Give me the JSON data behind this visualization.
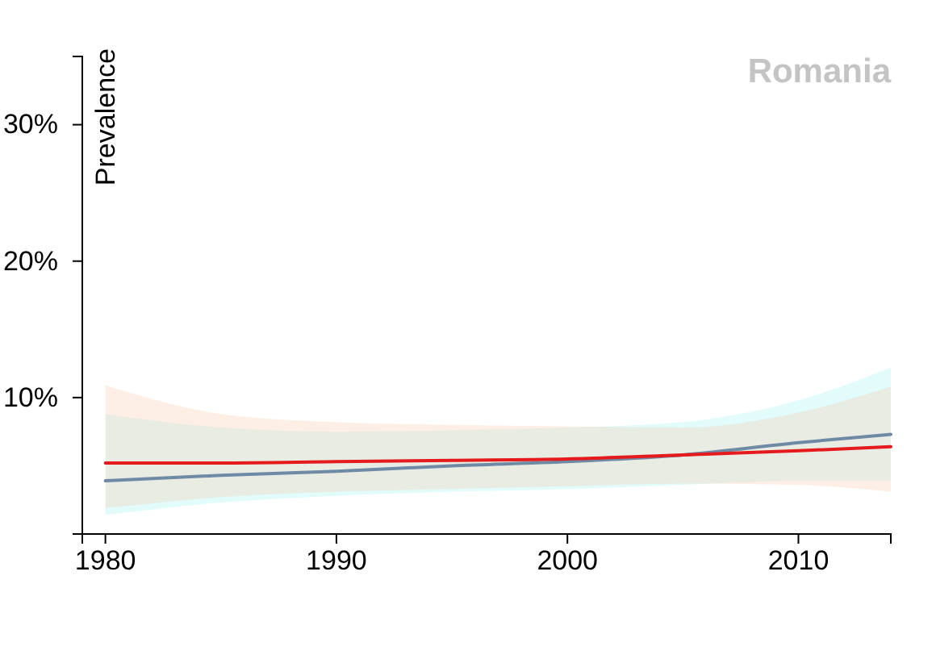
{
  "chart_data": {
    "type": "line",
    "title": "Romania",
    "ylabel": "Prevalence",
    "x": [
      1980,
      1985,
      1990,
      1995,
      2000,
      2005,
      2010,
      2014
    ],
    "series": [
      {
        "color": "#6f8aa5",
        "values": [
          3.9,
          4.3,
          4.6,
          5.0,
          5.3,
          5.8,
          6.7,
          7.3
        ],
        "lower": [
          1.4,
          2.3,
          2.8,
          3.1,
          3.3,
          3.6,
          3.9,
          3.9
        ],
        "upper": [
          8.8,
          7.8,
          7.5,
          7.6,
          7.8,
          8.2,
          9.8,
          12.2
        ]
      },
      {
        "color": "#e41a1c",
        "values": [
          5.2,
          5.2,
          5.3,
          5.4,
          5.5,
          5.8,
          6.1,
          6.4
        ],
        "lower": [
          1.9,
          2.7,
          3.1,
          3.3,
          3.5,
          3.7,
          3.6,
          3.1
        ],
        "upper": [
          10.9,
          8.8,
          8.2,
          8.0,
          7.9,
          7.8,
          8.9,
          10.8
        ]
      }
    ],
    "xlim": [
      1979,
      2014
    ],
    "ylim": [
      0,
      35
    ],
    "xticks": [
      1980,
      1990,
      2000,
      2010
    ],
    "yticks": [
      {
        "value": 10,
        "label": "10%"
      },
      {
        "value": 20,
        "label": "20%"
      },
      {
        "value": 30,
        "label": "30%"
      }
    ]
  }
}
